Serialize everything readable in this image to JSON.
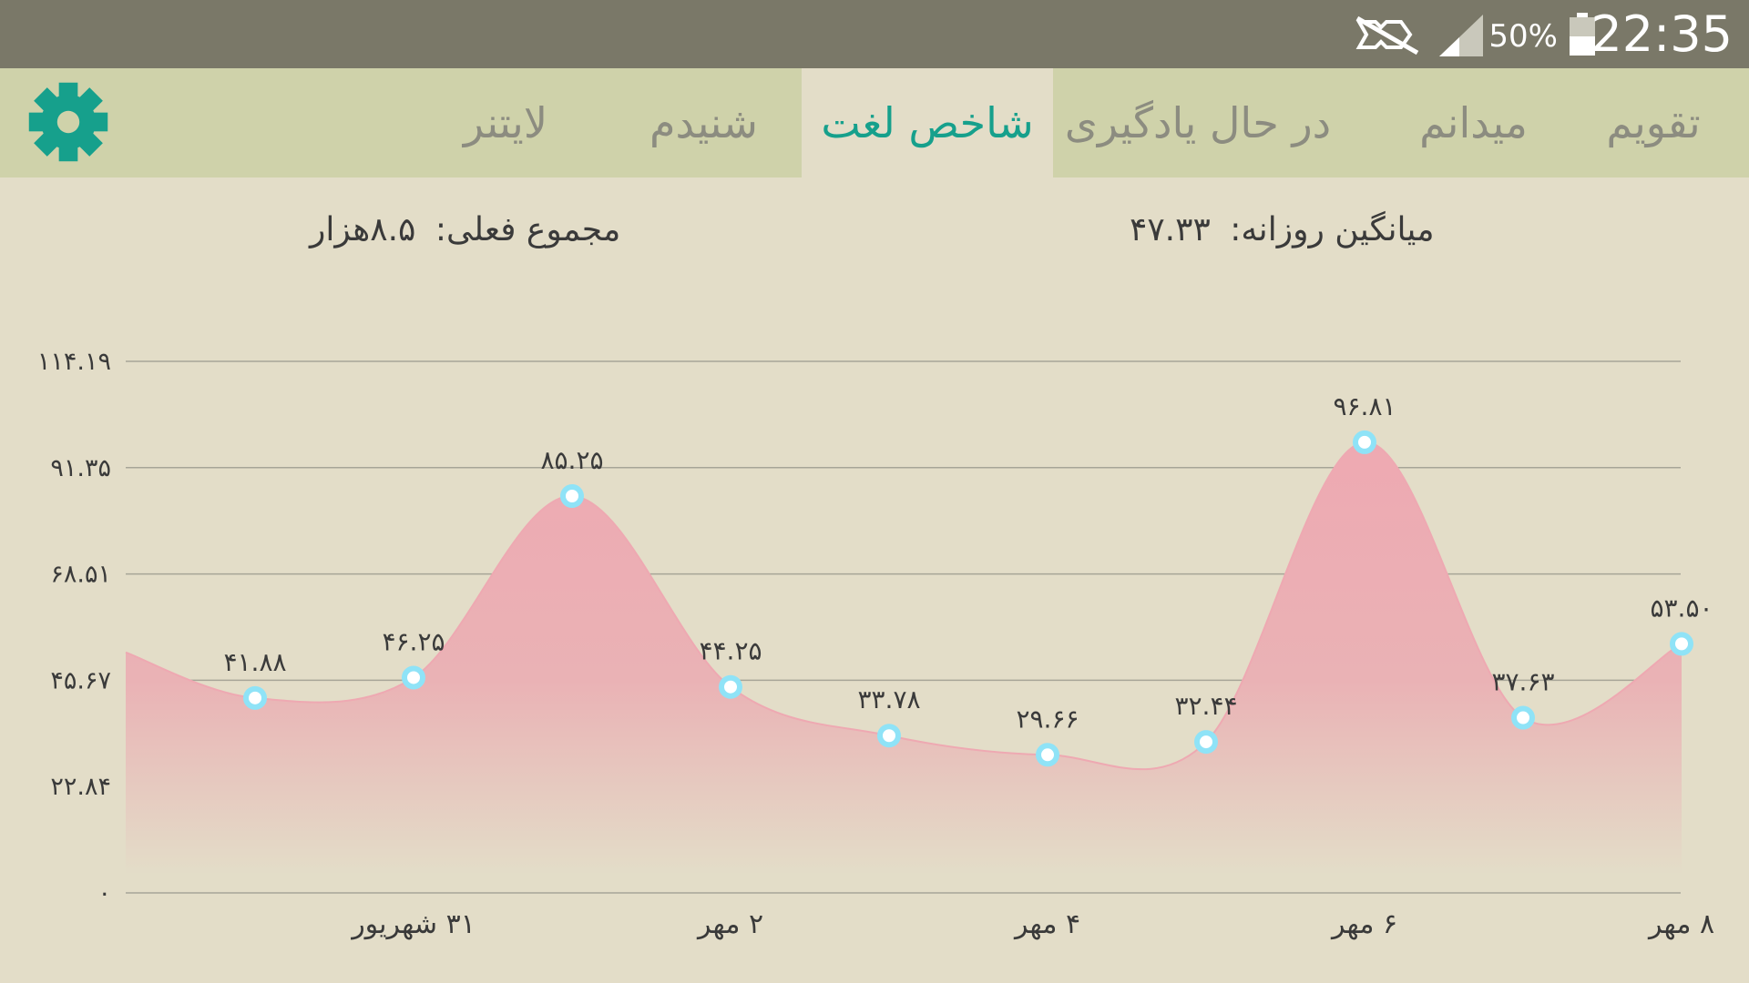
{
  "status_bar": {
    "time": "22:35",
    "battery_percent": "50%",
    "icons": [
      "mute-icon",
      "signal-icon",
      "battery-icon"
    ]
  },
  "tabs": [
    {
      "label": "تقویم",
      "active": false
    },
    {
      "label": "میدانم",
      "active": false
    },
    {
      "label": "در حال یادگیری",
      "active": false
    },
    {
      "label": "شاخص لغت",
      "active": true
    },
    {
      "label": "شنیدم",
      "active": false
    },
    {
      "label": "لایتنر",
      "active": false
    }
  ],
  "settings_icon": "gear-icon",
  "summary": {
    "daily_average_label": "میانگین روزانه:",
    "daily_average_value": "۴۷.۳۳",
    "current_total_label": "مجموع فعلی:",
    "current_total_value": "۸.۵هزار"
  },
  "colors": {
    "accent": "#16a08c",
    "area_fill": "#eea9b2",
    "point_fill": "#ffffff",
    "point_stroke": "#8fe3f7"
  },
  "chart_data": {
    "type": "area",
    "y_ticks": [
      {
        "value": 0,
        "label": "۰"
      },
      {
        "value": 22.84,
        "label": "۲۲.۸۴"
      },
      {
        "value": 45.67,
        "label": "۴۵.۶۷"
      },
      {
        "value": 68.51,
        "label": "۶۸.۵۱"
      },
      {
        "value": 91.35,
        "label": "۹۱.۳۵"
      },
      {
        "value": 114.19,
        "label": "۱۱۴.۱۹"
      }
    ],
    "ylim": [
      0,
      114.19
    ],
    "x_tick_labels": [
      {
        "index": 1,
        "label": "۳۱ شهریور"
      },
      {
        "index": 3,
        "label": "۲ مهر"
      },
      {
        "index": 5,
        "label": "۴ مهر"
      },
      {
        "index": 7,
        "label": "۶ مهر"
      },
      {
        "index": 9,
        "label": "۸ مهر"
      }
    ],
    "points": [
      {
        "index": 0,
        "value": 41.88,
        "label": "۴۱.۸۸"
      },
      {
        "index": 1,
        "value": 46.25,
        "label": "۴۶.۲۵"
      },
      {
        "index": 2,
        "value": 85.25,
        "label": "۸۵.۲۵"
      },
      {
        "index": 3,
        "value": 44.25,
        "label": "۴۴.۲۵"
      },
      {
        "index": 4,
        "value": 33.78,
        "label": "۳۳.۷۸"
      },
      {
        "index": 5,
        "value": 29.66,
        "label": "۲۹.۶۶"
      },
      {
        "index": 6,
        "value": 32.44,
        "label": "۳۲.۴۴"
      },
      {
        "index": 7,
        "value": 96.81,
        "label": "۹۶.۸۱"
      },
      {
        "index": 8,
        "value": 37.63,
        "label": "۳۷.۶۳"
      },
      {
        "index": 9,
        "value": 53.5,
        "label": "۵۳.۵۰"
      }
    ],
    "grid": true
  }
}
